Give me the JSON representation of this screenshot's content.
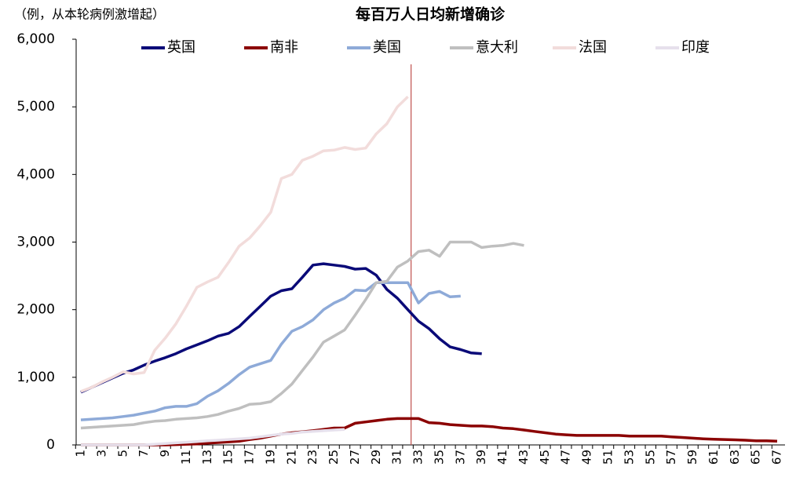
{
  "chart_data": {
    "type": "line",
    "title": "每百万人日均新增确诊",
    "subtitle": "（例，从本轮病例激增起）",
    "categories": [
      1,
      null,
      3,
      null,
      5,
      null,
      7,
      null,
      9,
      null,
      11,
      null,
      13,
      null,
      15,
      null,
      17,
      null,
      19,
      null,
      21,
      null,
      23,
      null,
      25,
      null,
      27,
      null,
      29,
      null,
      31,
      null,
      33,
      null,
      35,
      null,
      37,
      null,
      39,
      null,
      41,
      null,
      43,
      null,
      45,
      null,
      47,
      null,
      49,
      null,
      51,
      null,
      53,
      null,
      55,
      null,
      57,
      null,
      59,
      null,
      61,
      null,
      63,
      null,
      65,
      null,
      67
    ],
    "ylim": [
      0,
      6000
    ],
    "yticks": [
      0,
      {
        "value": 1000,
        "label": "1,000"
      },
      {
        "value": 2000,
        "label": "2,000"
      },
      {
        "value": 3000,
        "label": "3,000"
      },
      {
        "value": 4000,
        "label": "4,000"
      },
      {
        "value": 5000,
        "label": "5,000"
      },
      {
        "value": 6000,
        "label": "6,000"
      }
    ],
    "reference_line": {
      "x": 32.3,
      "color": "#c0504d"
    },
    "series": [
      {
        "name": "英国",
        "color": "#0a0a78",
        "values": [
          780,
          850,
          920,
          990,
          1060,
          1110,
          1180,
          1240,
          1290,
          1350,
          1420,
          1480,
          1540,
          1610,
          1650,
          1750,
          1900,
          2050,
          2200,
          2280,
          2310,
          2480,
          2660,
          2680,
          2660,
          2640,
          2600,
          2610,
          2510,
          2300,
          2170,
          2000,
          1830,
          1720,
          1570,
          1450,
          1410,
          1360,
          1350,
          null,
          null,
          null,
          null,
          null,
          null,
          null,
          null,
          null,
          null,
          null,
          null,
          null,
          null,
          null,
          null,
          null,
          null,
          null,
          null,
          null,
          null,
          null,
          null,
          null,
          null,
          null,
          null
        ]
      },
      {
        "name": "南非",
        "color": "#8b0000",
        "values": [
          0,
          0,
          0,
          0,
          0,
          0,
          0,
          0,
          0,
          5,
          10,
          15,
          25,
          35,
          45,
          55,
          80,
          100,
          130,
          160,
          180,
          195,
          210,
          230,
          250,
          250,
          320,
          340,
          360,
          380,
          390,
          390,
          390,
          330,
          320,
          300,
          290,
          280,
          280,
          270,
          250,
          240,
          220,
          200,
          180,
          160,
          150,
          140,
          140,
          140,
          140,
          140,
          130,
          130,
          130,
          130,
          120,
          110,
          100,
          90,
          85,
          80,
          75,
          70,
          60,
          60,
          55
        ]
      },
      {
        "name": "美国",
        "color": "#8eaad8",
        "values": [
          370,
          380,
          390,
          400,
          420,
          440,
          470,
          500,
          550,
          570,
          570,
          610,
          720,
          800,
          910,
          1040,
          1150,
          1200,
          1250,
          1490,
          1680,
          1750,
          1850,
          2000,
          2100,
          2170,
          2290,
          2280,
          2400,
          2400,
          2400,
          2400,
          2100,
          2240,
          2270,
          2190,
          2200,
          null,
          null,
          null,
          null,
          null,
          null,
          null,
          null,
          null,
          null,
          null,
          null,
          null,
          null,
          null,
          null,
          null,
          null,
          null,
          null,
          null,
          null,
          null,
          null,
          null,
          null,
          null,
          null,
          null,
          null
        ]
      },
      {
        "name": "意大利",
        "color": "#bfbfbf",
        "values": [
          250,
          260,
          270,
          280,
          290,
          300,
          330,
          350,
          360,
          380,
          390,
          400,
          420,
          450,
          500,
          540,
          600,
          610,
          640,
          760,
          900,
          1100,
          1300,
          1520,
          1610,
          1700,
          1920,
          2150,
          2400,
          2420,
          2630,
          2720,
          2860,
          2880,
          2790,
          3000,
          3000,
          3000,
          2920,
          2940,
          2950,
          2980,
          2950,
          null,
          null,
          null,
          null,
          null,
          null,
          null,
          null,
          null,
          null,
          null,
          null,
          null,
          null,
          null,
          null,
          null,
          null,
          null,
          null,
          null,
          null,
          null,
          null
        ]
      },
      {
        "name": "法国",
        "color": "#f2dcdb",
        "values": [
          790,
          850,
          930,
          1000,
          1080,
          1050,
          1070,
          1400,
          1580,
          1790,
          2050,
          2330,
          2410,
          2480,
          2700,
          2940,
          3060,
          3240,
          3440,
          3940,
          4000,
          4210,
          4270,
          4350,
          4360,
          4400,
          4370,
          4390,
          4600,
          4750,
          5000,
          5150,
          null,
          null,
          null,
          null,
          null,
          null,
          null,
          null,
          null,
          null,
          null,
          null,
          null,
          null,
          null,
          null,
          null,
          null,
          null,
          null,
          null,
          null,
          null,
          null,
          null,
          null,
          null,
          null,
          null,
          null,
          null,
          null,
          null,
          null,
          null
        ]
      },
      {
        "name": "印度",
        "color": "#e6e0ec",
        "values": [
          0,
          0,
          0,
          0,
          0,
          0,
          0,
          10,
          20,
          30,
          40,
          50,
          60,
          70,
          80,
          90,
          100,
          120,
          140,
          160,
          170,
          190,
          200,
          210,
          220,
          230,
          null,
          null,
          null,
          null,
          null,
          null,
          null,
          null,
          null,
          null,
          null,
          null,
          null,
          null,
          null,
          null,
          null,
          null,
          null,
          null,
          null,
          null,
          null,
          null,
          null,
          null,
          null,
          null,
          null,
          null,
          null,
          null,
          null,
          null,
          null,
          null,
          null,
          null,
          null,
          null,
          null
        ]
      }
    ]
  }
}
